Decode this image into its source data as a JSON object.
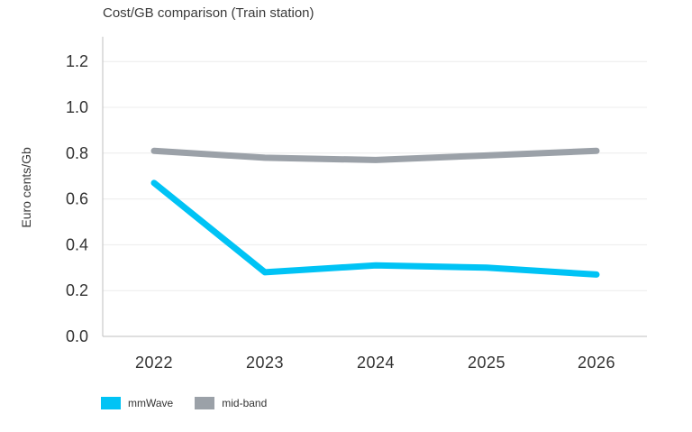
{
  "chart_data": {
    "type": "line",
    "title": "Cost/GB comparison (Train station)",
    "xlabel": "",
    "ylabel": "Euro cents/Gb",
    "categories": [
      "2022",
      "2023",
      "2024",
      "2025",
      "2026"
    ],
    "y_ticks": [
      "0.0",
      "0.2",
      "0.4",
      "0.6",
      "0.8",
      "1.0",
      "1.2"
    ],
    "ylim": [
      0,
      1.3
    ],
    "grid": true,
    "legend_position": "bottom-left",
    "series": [
      {
        "name": "mmWave",
        "color": "#00c3f5",
        "values": [
          0.67,
          0.28,
          0.31,
          0.3,
          0.27
        ]
      },
      {
        "name": "mid-band",
        "color": "#9ba1a8",
        "values": [
          0.81,
          0.78,
          0.77,
          0.79,
          0.81
        ]
      }
    ]
  }
}
